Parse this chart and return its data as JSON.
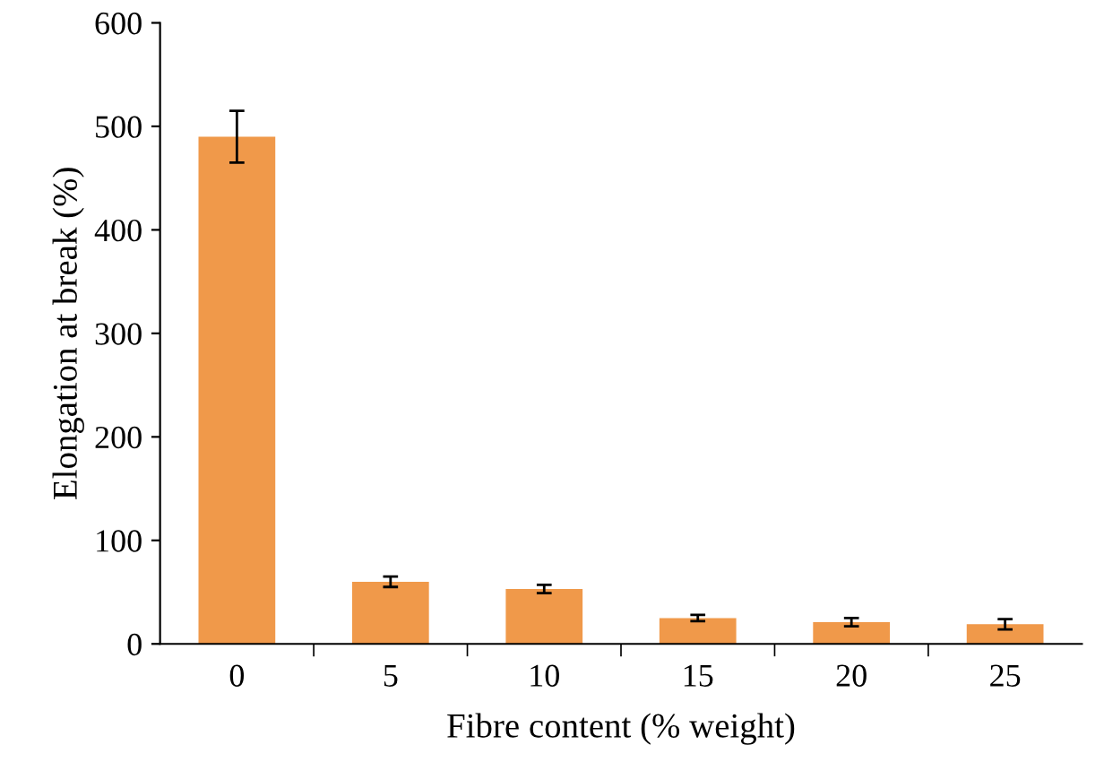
{
  "chart_data": {
    "type": "bar",
    "xlabel": "Fibre content (% weight)",
    "ylabel": "Elongation at break (%)",
    "categories": [
      "0",
      "5",
      "10",
      "15",
      "20",
      "25"
    ],
    "values": [
      490,
      60,
      53,
      25,
      21,
      19
    ],
    "errors": [
      25,
      5,
      4,
      3,
      4,
      5
    ],
    "color": "#f0994a",
    "ylim": [
      0,
      600
    ],
    "yticks": [
      0,
      100,
      200,
      300,
      400,
      500,
      600
    ],
    "grid": false
  }
}
